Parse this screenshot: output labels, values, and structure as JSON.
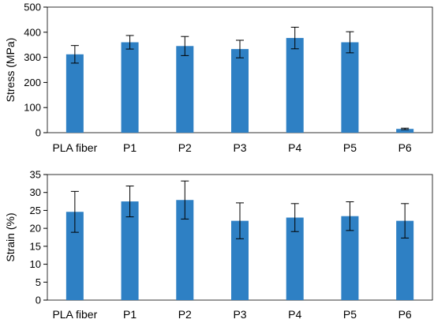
{
  "chart_data": [
    {
      "type": "bar",
      "categories": [
        "PLA fiber",
        "P1",
        "P2",
        "P3",
        "P4",
        "P5",
        "P6"
      ],
      "values": [
        312,
        360,
        345,
        333,
        377,
        360,
        15
      ],
      "errors": [
        35,
        27,
        38,
        35,
        43,
        42,
        3
      ],
      "ylabel": "Stress (MPa)",
      "ylim": [
        0,
        500
      ],
      "yticks": [
        0,
        100,
        200,
        300,
        400,
        500
      ],
      "grid": false,
      "bar_color": "#2e80c4"
    },
    {
      "type": "bar",
      "categories": [
        "PLA fiber",
        "P1",
        "P2",
        "P3",
        "P4",
        "P5",
        "P6"
      ],
      "values": [
        24.6,
        27.5,
        27.9,
        22.1,
        23.0,
        23.4,
        22.1
      ],
      "errors": [
        5.7,
        4.3,
        5.3,
        5.0,
        3.9,
        4.0,
        4.8
      ],
      "ylabel": "Strain (%)",
      "ylim": [
        0,
        35
      ],
      "yticks": [
        0,
        5,
        10,
        15,
        20,
        25,
        30,
        35
      ],
      "grid": false,
      "bar_color": "#2e80c4"
    }
  ]
}
